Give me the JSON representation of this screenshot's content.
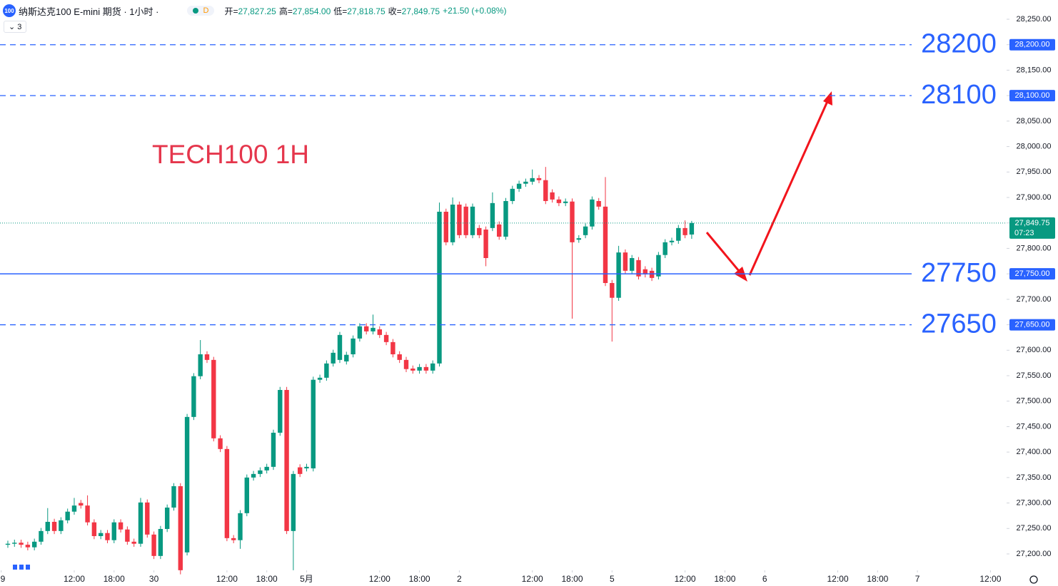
{
  "header": {
    "symbol_icon": "100",
    "title": "纳斯达克100 E-mini 期货 · 1小时 ·",
    "badge": "D",
    "ohlc": [
      {
        "label": "开=",
        "value": "27,827.25"
      },
      {
        "label": "高=",
        "value": "27,854.00"
      },
      {
        "label": "低=",
        "value": "27,818.75"
      },
      {
        "label": "收=",
        "value": "27,849.75"
      }
    ],
    "change": "+21.50 (+0.08%)",
    "layers": "3"
  },
  "chart_data": {
    "type": "candlestick",
    "title": "TECH100 1H",
    "up_color": "#089981",
    "down_color": "#f23645",
    "xlim": [
      -1.18,
      150.43
    ],
    "ylim": [
      27167.8,
      28287.8
    ],
    "xticks": [
      {
        "value": -1,
        "label": "9"
      },
      {
        "value": 10,
        "label": "12:00"
      },
      {
        "value": 16,
        "label": "18:00"
      },
      {
        "value": 22,
        "label": "30"
      },
      {
        "value": 33,
        "label": "12:00"
      },
      {
        "value": 39,
        "label": "18:00"
      },
      {
        "value": 45,
        "label": "5月"
      },
      {
        "value": 56,
        "label": "12:00"
      },
      {
        "value": 62,
        "label": "18:00"
      },
      {
        "value": 68,
        "label": "2"
      },
      {
        "value": 79,
        "label": "12:00"
      },
      {
        "value": 85,
        "label": "18:00"
      },
      {
        "value": 91,
        "label": "5"
      },
      {
        "value": 102,
        "label": "12:00"
      },
      {
        "value": 108,
        "label": "18:00"
      },
      {
        "value": 114,
        "label": "6"
      },
      {
        "value": 125,
        "label": "12:00"
      },
      {
        "value": 131,
        "label": "18:00"
      },
      {
        "value": 137,
        "label": "7"
      },
      {
        "value": 148,
        "label": "12:00"
      }
    ],
    "yticks": [
      {
        "value": 28250,
        "label": "28,250.00"
      },
      {
        "value": 28200,
        "label": "28,200.00"
      },
      {
        "value": 28150,
        "label": "28,150.00"
      },
      {
        "value": 28100,
        "label": "28,100.00"
      },
      {
        "value": 28050,
        "label": "28,050.00"
      },
      {
        "value": 28000,
        "label": "28,000.00"
      },
      {
        "value": 27950,
        "label": "27,950.00"
      },
      {
        "value": 27900,
        "label": "27,900.00"
      },
      {
        "value": 27850,
        "label": "27,850.00"
      },
      {
        "value": 27800,
        "label": "27,800.00"
      },
      {
        "value": 27750,
        "label": "27,750.00"
      },
      {
        "value": 27700,
        "label": "27,700.00"
      },
      {
        "value": 27650,
        "label": "27,650.00"
      },
      {
        "value": 27600,
        "label": "27,600.00"
      },
      {
        "value": 27550,
        "label": "27,550.00"
      },
      {
        "value": 27500,
        "label": "27,500.00"
      },
      {
        "value": 27450,
        "label": "27,450.00"
      },
      {
        "value": 27400,
        "label": "27,400.00"
      },
      {
        "value": 27350,
        "label": "27,350.00"
      },
      {
        "value": 27300,
        "label": "27,300.00"
      },
      {
        "value": 27250,
        "label": "27,250.00"
      },
      {
        "value": 27200,
        "label": "27,200.00"
      }
    ],
    "levels": [
      {
        "value": 28200,
        "label": "28200",
        "style": "dashed"
      },
      {
        "value": 28100,
        "label": "28100",
        "style": "dashed"
      },
      {
        "value": 27750,
        "label": "27750",
        "style": "solid"
      },
      {
        "value": 27650,
        "label": "27650",
        "style": "dashed"
      }
    ],
    "last_price": {
      "value": 27849.75,
      "label": "27,849.75",
      "countdown": "07:23"
    },
    "open": [
      27218,
      27220,
      27222,
      27218,
      27213,
      27224,
      27245,
      27263,
      27245,
      27266,
      27283,
      27300,
      27295,
      27262,
      27235,
      27241,
      27227,
      27262,
      27248,
      27224,
      27220,
      27301,
      27238,
      27196,
      27249,
      27291,
      27333,
      27203,
      27469,
      27549,
      27592,
      27581,
      27427,
      27406,
      27231,
      27227,
      27280,
      27350,
      27357,
      27364,
      27371,
      27438,
      27522,
      27245,
      27370,
      27368,
      27368,
      27542,
      27546,
      27574,
      27581,
      27578,
      27592,
      27623,
      27647,
      27637,
      27641,
      27630,
      27616,
      27592,
      27581,
      27564,
      27560,
      27567,
      27560,
      27574,
      27872,
      27812,
      27886,
      27882,
      27826,
      27840,
      27837,
      27840,
      27847,
      27823,
      27893,
      27917,
      27927,
      27931,
      27938,
      27934,
      27910,
      27896,
      27889,
      27892,
      27817,
      27826,
      27843,
      27893,
      27882,
      27732,
      27703,
      27792,
      27756,
      27777,
      27759,
      27756,
      27745,
      27787,
      27812,
      27815,
      27840,
      27827.25
    ],
    "high": [
      27226,
      27228,
      27228,
      27224,
      27230,
      27251,
      27290,
      27269,
      27272,
      27289,
      27310,
      27306,
      27315,
      27268,
      27247,
      27247,
      27268,
      27268,
      27254,
      27230,
      27310,
      27307,
      27244,
      27255,
      27297,
      27339,
      27339,
      27475,
      27555,
      27620,
      27598,
      27587,
      27433,
      27412,
      27237,
      27286,
      27356,
      27363,
      27370,
      27377,
      27444,
      27528,
      27528,
      27363,
      27376,
      27377,
      27548,
      27552,
      27580,
      27601,
      27636,
      27597,
      27629,
      27653,
      27653,
      27670,
      27647,
      27636,
      27622,
      27598,
      27587,
      27570,
      27573,
      27573,
      27580,
      27890,
      27878,
      27900,
      27892,
      27888,
      27888,
      27846,
      27843,
      27910,
      27853,
      27899,
      27923,
      27933,
      27937,
      27955,
      27944,
      27960,
      27916,
      27902,
      27898,
      27898,
      27826,
      27849,
      27902,
      27899,
      27940,
      27738,
      27805,
      27798,
      27787,
      27783,
      27765,
      27762,
      27793,
      27818,
      27821,
      27846,
      27855,
      27854
    ],
    "low": [
      27212,
      27214,
      27212,
      27207,
      27207,
      27218,
      27239,
      27239,
      27239,
      27260,
      27277,
      27289,
      27256,
      27229,
      27229,
      27221,
      27221,
      27242,
      27218,
      27214,
      27214,
      27232,
      27190,
      27190,
      27243,
      27285,
      27160,
      27197,
      27463,
      27543,
      27575,
      27421,
      27400,
      27225,
      27221,
      27210,
      27274,
      27344,
      27351,
      27358,
      27365,
      27432,
      27239,
      27168,
      27351,
      27362,
      27362,
      27536,
      27540,
      27568,
      27575,
      27572,
      27586,
      27617,
      27631,
      27631,
      27624,
      27610,
      27586,
      27575,
      27557,
      27554,
      27554,
      27554,
      27554,
      27568,
      27806,
      27806,
      27820,
      27820,
      27820,
      27820,
      27765,
      27834,
      27817,
      27817,
      27887,
      27911,
      27921,
      27925,
      27928,
      27887,
      27890,
      27883,
      27883,
      27662,
      27811,
      27820,
      27837,
      27876,
      27726,
      27617,
      27697,
      27750,
      27750,
      27739,
      27743,
      27736,
      27739,
      27781,
      27806,
      27809,
      27820,
      27818.75
    ],
    "close": [
      27220,
      27222,
      27218,
      27213,
      27224,
      27245,
      27263,
      27245,
      27266,
      27283,
      27295,
      27295,
      27262,
      27235,
      27241,
      27227,
      27262,
      27248,
      27224,
      27220,
      27301,
      27238,
      27196,
      27249,
      27291,
      27333,
      27168,
      27469,
      27549,
      27592,
      27581,
      27427,
      27406,
      27231,
      27227,
      27280,
      27350,
      27357,
      27364,
      27371,
      27438,
      27522,
      27245,
      27357,
      27357,
      27371,
      27542,
      27546,
      27574,
      27595,
      27630,
      27591,
      27623,
      27647,
      27637,
      27644,
      27630,
      27616,
      27592,
      27581,
      27563,
      27560,
      27567,
      27560,
      27574,
      27872,
      27812,
      27886,
      27826,
      27826,
      27882,
      27826,
      27781,
      27889,
      27823,
      27893,
      27917,
      27927,
      27931,
      27938,
      27934,
      27893,
      27896,
      27889,
      27892,
      27812,
      27820,
      27843,
      27896,
      27882,
      27732,
      27703,
      27792,
      27756,
      27781,
      27745,
      27749,
      27742,
      27787,
      27812,
      27815,
      27840,
      27826,
      27849.75
    ]
  }
}
